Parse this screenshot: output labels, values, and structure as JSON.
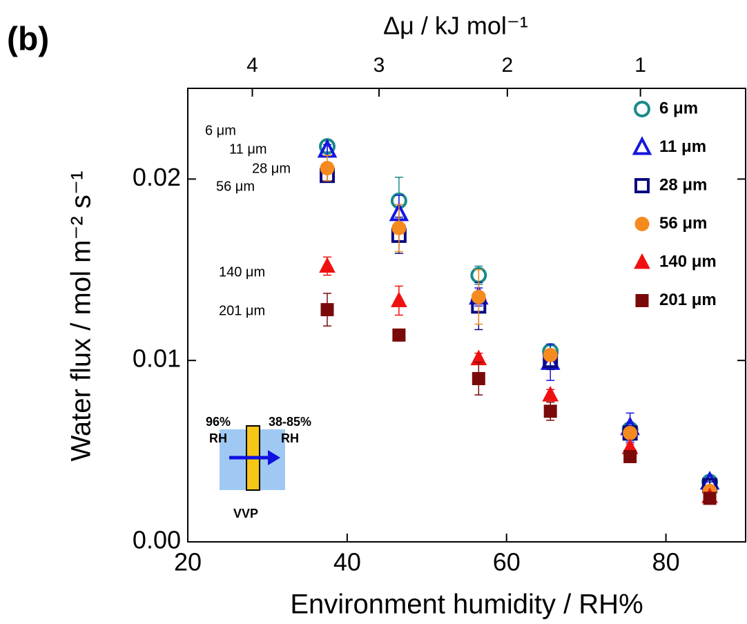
{
  "chart_data": {
    "type": "scatter",
    "panel_label": "(b)",
    "x_label": "Environment humidity / RH%",
    "y_label": "Water flux / mol m⁻² s⁻¹",
    "x2_label": "Δμ / kJ mol⁻¹",
    "x": [
      37.5,
      46.5,
      56.5,
      65.5,
      75.5,
      85.5
    ],
    "xlim": [
      20,
      90
    ],
    "xticks": [
      20,
      40,
      60,
      80
    ],
    "x2ticks": [
      {
        "value": 28.1,
        "label": "4"
      },
      {
        "value": 44.0,
        "label": "3"
      },
      {
        "value": 60.1,
        "label": "2"
      },
      {
        "value": 76.8,
        "label": "1"
      }
    ],
    "ylim": [
      0,
      0.025
    ],
    "yticks": [
      {
        "value": 0,
        "label": "0.00"
      },
      0.01,
      0.02
    ],
    "legend": "upper right",
    "series": [
      {
        "name": "6 μm",
        "color": "#1a8a8a",
        "marker": "circle",
        "filled": false,
        "values": [
          0.0218,
          0.0188,
          0.0147,
          0.0105,
          0.0062,
          0.0033
        ],
        "errors": [
          0.0003,
          0.0013,
          0.0005,
          0.0003,
          0.0003,
          0.0002
        ]
      },
      {
        "name": "11 μm",
        "color": "#1515e0",
        "marker": "triangle",
        "filled": false,
        "values": [
          0.0216,
          0.0181,
          0.0135,
          0.0099,
          0.0063,
          0.0033
        ],
        "errors": [
          0.0003,
          0.001,
          0.0005,
          0.001,
          0.0008,
          0.0002
        ]
      },
      {
        "name": "28 μm",
        "color": "#0a0a80",
        "marker": "square",
        "filled": false,
        "values": [
          0.0202,
          0.0169,
          0.013,
          0.01,
          0.006,
          0.0031
        ],
        "errors": [
          0.0003,
          0.001,
          0.0013,
          0.0005,
          0.0004,
          0.0002
        ]
      },
      {
        "name": "56 μm",
        "color": "#f58a1f",
        "marker": "circle",
        "filled": true,
        "values": [
          0.0206,
          0.0173,
          0.0135,
          0.0103,
          0.006,
          0.0028
        ],
        "errors": [
          0.0007,
          0.0013,
          0.0015,
          0.0003,
          0.0003,
          0.0002
        ]
      },
      {
        "name": "140 μm",
        "color": "#f01010",
        "marker": "triangle",
        "filled": true,
        "values": [
          0.0152,
          0.0133,
          0.0101,
          0.0081,
          0.0052,
          0.0025
        ],
        "errors": [
          0.0005,
          0.0008,
          0.0003,
          0.0003,
          0.0002,
          0.0002
        ]
      },
      {
        "name": "201 μm",
        "color": "#7a0a0a",
        "marker": "square",
        "filled": true,
        "values": [
          0.0128,
          0.0114,
          0.009,
          0.0072,
          0.0047,
          0.0024
        ],
        "errors": [
          0.0009,
          0.0002,
          0.0009,
          0.0005,
          0.0002,
          0.0002
        ]
      }
    ],
    "annotations": [
      {
        "text": "6 μm",
        "color": "#1a8a8a"
      },
      {
        "text": "11 μm",
        "color": "#1515e0"
      },
      {
        "text": "28 μm",
        "color": "#0a0a80"
      },
      {
        "text": "56 μm",
        "color": "#f58a1f"
      },
      {
        "text": "140 μm",
        "color": "#f01010"
      },
      {
        "text": "201 μm",
        "color": "#7a0a0a"
      }
    ],
    "inset": {
      "left_top": "96%",
      "left_bottom": "RH",
      "right_top": "38-85%",
      "right_bottom": "RH",
      "caption": "VVP"
    }
  }
}
